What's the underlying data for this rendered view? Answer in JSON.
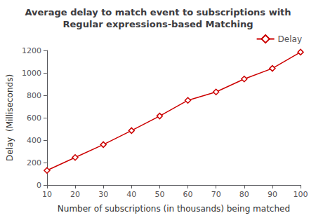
{
  "chart_data": {
    "type": "line",
    "title": "Average delay to match event to subscriptions with\nRegular expressions-based Matching",
    "xlabel": "Number of subscriptions (in thousands) being matched",
    "ylabel": "Delay  (Milliseconds)",
    "x": [
      10,
      20,
      30,
      40,
      50,
      60,
      70,
      80,
      90,
      100
    ],
    "series": [
      {
        "name": "Delay",
        "color": "#cc0000",
        "marker": "diamond",
        "values": [
          130,
          245,
          360,
          485,
          615,
          755,
          830,
          945,
          1040,
          1185
        ]
      }
    ],
    "xlim": [
      10,
      100
    ],
    "ylim": [
      0,
      1200
    ],
    "xticks": [
      10,
      20,
      30,
      40,
      50,
      60,
      70,
      80,
      90,
      100
    ],
    "yticks": [
      0,
      200,
      400,
      600,
      800,
      1000,
      1200
    ],
    "legend": "upper right",
    "grid": false
  }
}
